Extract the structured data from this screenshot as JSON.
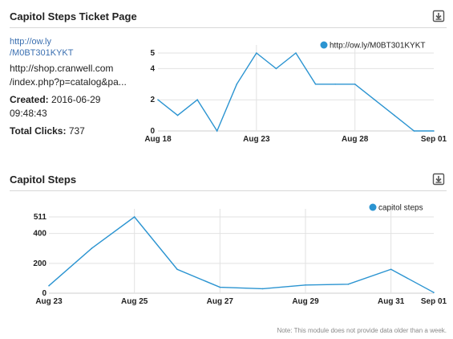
{
  "panel1": {
    "title": "Capitol Steps Ticket Page",
    "short_link_line1": "http://ow.ly",
    "short_link_line2": "/M0BT301KYKT",
    "long_url_line1": "http://shop.cranwell.com",
    "long_url_line2": "/index.php?p=catalog&pa...",
    "created_label": "Created:",
    "created_date": "2016-06-29",
    "created_time": "09:48:43",
    "clicks_label": "Total Clicks:",
    "clicks_value": "737",
    "download_icon": "download-icon"
  },
  "panel2": {
    "title": "Capitol Steps",
    "download_icon": "download-icon"
  },
  "note": "Note: This module does not provide data older than a week.",
  "colors": {
    "line": "#2b94d1",
    "grid": "#e2e2e2",
    "axis": "#cfcfcf"
  },
  "chart_data": [
    {
      "type": "line",
      "legend": "http://ow.ly/M0BT301KYKT",
      "legend_position": "top-right",
      "x_ticks": [
        "Aug 18",
        "Aug 23",
        "Aug 28",
        "Sep 01"
      ],
      "y_ticks": [
        "0",
        "2",
        "4",
        "5"
      ],
      "ylim": [
        0,
        5
      ],
      "dates": [
        "Aug 18",
        "Aug 19",
        "Aug 20",
        "Aug 21",
        "Aug 22",
        "Aug 23",
        "Aug 24",
        "Aug 25",
        "Aug 26",
        "Aug 27",
        "Aug 28",
        "Aug 29",
        "Aug 30",
        "Aug 31",
        "Sep 01"
      ],
      "values": [
        2,
        1,
        2,
        0,
        3,
        5,
        4,
        5,
        3,
        3,
        3,
        2,
        1,
        0,
        0
      ]
    },
    {
      "type": "line",
      "legend": "capitol steps",
      "legend_position": "top-right",
      "x_ticks": [
        "Aug 23",
        "Aug 25",
        "Aug 27",
        "Aug 29",
        "Aug 31",
        "Sep 01"
      ],
      "y_ticks": [
        "0",
        "200",
        "400",
        "511"
      ],
      "ylim": [
        0,
        511
      ],
      "dates": [
        "Aug 23",
        "Aug 24",
        "Aug 25",
        "Aug 26",
        "Aug 27",
        "Aug 28",
        "Aug 29",
        "Aug 30",
        "Aug 31",
        "Sep 01"
      ],
      "values": [
        50,
        300,
        511,
        160,
        40,
        30,
        55,
        60,
        160,
        5
      ]
    }
  ]
}
